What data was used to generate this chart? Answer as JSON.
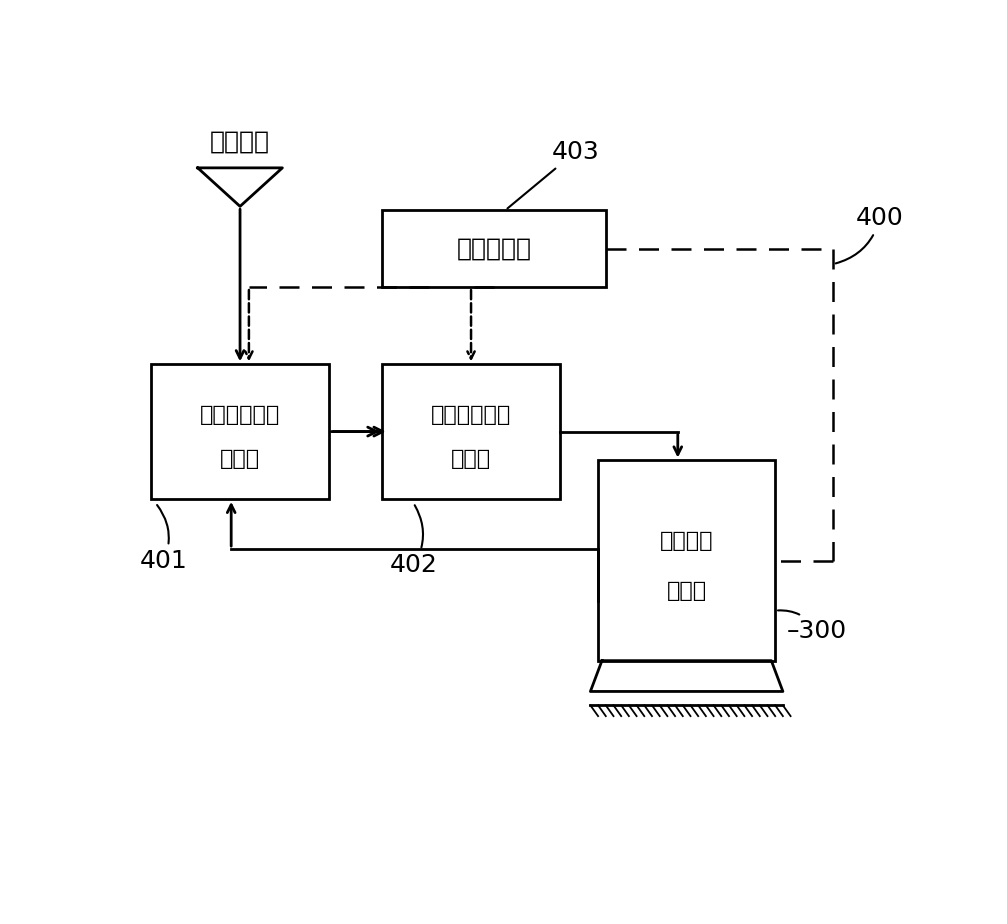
{
  "bg_color": "#ffffff",
  "fig_width": 10.07,
  "fig_height": 9.24,
  "dpi": 100,
  "label_slurry": "涂布浆料",
  "label_central": "中央控制器",
  "label_temp_line1": "温度（粘度）",
  "label_temp_line2": "控制器",
  "label_flow_line1": "流量（压力）",
  "label_flow_line2": "控制器",
  "label_extruder_line1": "可控条缝",
  "label_extruder_line2": "挤压器",
  "label_400": "400",
  "label_401": "401",
  "label_402": "402",
  "label_403": "403",
  "label_300": "300",
  "line_color": "#000000",
  "dashed_color": "#000000",
  "text_color": "#000000",
  "font_size_box": 18,
  "font_size_label": 16,
  "font_size_number": 18
}
